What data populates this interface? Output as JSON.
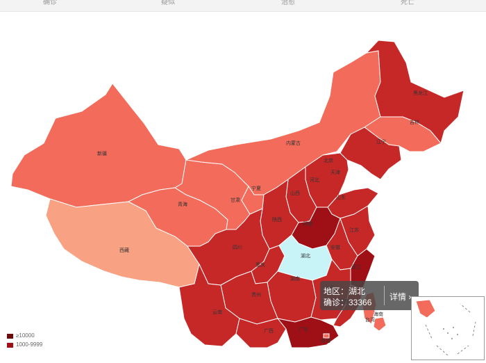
{
  "header": {
    "stats": [
      {
        "label": "确诊",
        "value": "",
        "color": "#e03131"
      },
      {
        "label": "疑似",
        "value": "",
        "color": "#f59f00"
      },
      {
        "label": "治愈",
        "value": "",
        "color": "#15aabf"
      },
      {
        "label": "死亡",
        "value": "",
        "color": "#495057"
      }
    ]
  },
  "map": {
    "provinces": [
      {
        "name": "新疆",
        "color": "#f26b5b"
      },
      {
        "name": "西藏",
        "color": "#f9a183"
      },
      {
        "name": "青海",
        "color": "#f26b5b"
      },
      {
        "name": "甘肃",
        "color": "#f26b5b"
      },
      {
        "name": "内蒙古",
        "color": "#f26b5b"
      },
      {
        "name": "宁夏",
        "color": "#f26b5b"
      },
      {
        "name": "黑龙江",
        "color": "#c62828"
      },
      {
        "name": "吉林",
        "color": "#f26b5b"
      },
      {
        "name": "辽宁",
        "color": "#c62828"
      },
      {
        "name": "北京",
        "color": "#c62828"
      },
      {
        "name": "天津",
        "color": "#c62828"
      },
      {
        "name": "河北",
        "color": "#c62828"
      },
      {
        "name": "山西",
        "color": "#c62828"
      },
      {
        "name": "山东",
        "color": "#c62828"
      },
      {
        "name": "陕西",
        "color": "#c62828"
      },
      {
        "name": "河南",
        "color": "#9e1016"
      },
      {
        "name": "江苏",
        "color": "#c62828"
      },
      {
        "name": "安徽",
        "color": "#c62828"
      },
      {
        "name": "四川",
        "color": "#c62828"
      },
      {
        "name": "重庆",
        "color": "#c62828"
      },
      {
        "name": "湖北",
        "color": "#c8f4f8"
      },
      {
        "name": "浙江",
        "color": "#9e1016"
      },
      {
        "name": "湖南",
        "color": "#c62828"
      },
      {
        "name": "江西",
        "color": "#c62828"
      },
      {
        "name": "贵州",
        "color": "#c62828"
      },
      {
        "name": "云南",
        "color": "#c62828"
      },
      {
        "name": "广西",
        "color": "#c62828"
      },
      {
        "name": "广东",
        "color": "#9e1016"
      },
      {
        "name": "福建",
        "color": "#c62828"
      },
      {
        "name": "台湾",
        "color": "#f26b5b"
      },
      {
        "name": "海南",
        "color": "#f26b5b"
      },
      {
        "name": "香港",
        "color": "#f26b5b"
      }
    ],
    "tooltip": {
      "region_label": "地区：湖北",
      "confirmed_label": "确诊：33366",
      "detail_label": "详情 ›"
    },
    "legend": [
      {
        "label": "≥10000",
        "color": "#6e0a0a"
      },
      {
        "label": "1000-9999",
        "color": "#9e1016"
      }
    ]
  }
}
